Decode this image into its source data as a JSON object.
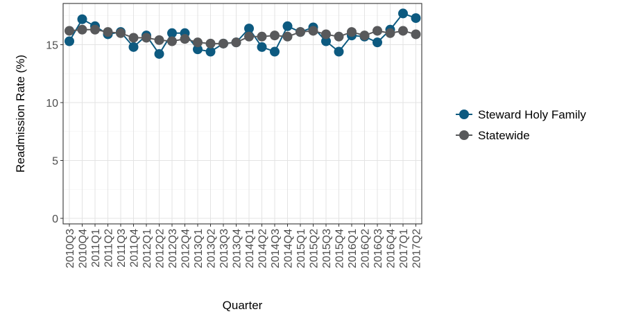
{
  "chart_data": {
    "type": "line",
    "xlabel": "Quarter",
    "ylabel": "Readmission Rate (%)",
    "ylim": [
      0,
      18
    ],
    "yticks": [
      0,
      5,
      10,
      15
    ],
    "grid": true,
    "legend_position": "right",
    "categories": [
      "2010Q3",
      "2010Q4",
      "2011Q1",
      "2011Q2",
      "2011Q3",
      "2011Q4",
      "2012Q1",
      "2012Q2",
      "2012Q3",
      "2012Q4",
      "2013Q1",
      "2013Q2",
      "2013Q3",
      "2013Q4",
      "2014Q1",
      "2014Q2",
      "2014Q3",
      "2014Q4",
      "2015Q1",
      "2015Q2",
      "2015Q3",
      "2015Q4",
      "2016Q1",
      "2016Q2",
      "2016Q3",
      "2016Q4",
      "2017Q1",
      "2017Q2"
    ],
    "series": [
      {
        "name": "Steward Holy Family",
        "color": "#0d5a80",
        "values": [
          15.3,
          17.2,
          16.6,
          15.9,
          16.1,
          14.8,
          15.8,
          14.2,
          16.0,
          16.0,
          14.6,
          14.4,
          15.1,
          15.2,
          16.4,
          14.8,
          14.4,
          16.6,
          16.1,
          16.5,
          15.3,
          14.4,
          15.8,
          15.7,
          15.2,
          16.3,
          17.7,
          17.3
        ]
      },
      {
        "name": "Statewide",
        "color": "#58595b",
        "values": [
          16.2,
          16.3,
          16.3,
          16.1,
          16.0,
          15.6,
          15.6,
          15.4,
          15.3,
          15.5,
          15.2,
          15.1,
          15.1,
          15.2,
          15.7,
          15.7,
          15.8,
          15.7,
          16.1,
          16.2,
          15.9,
          15.7,
          16.1,
          15.8,
          16.2,
          16.0,
          16.2,
          15.9
        ]
      }
    ]
  }
}
